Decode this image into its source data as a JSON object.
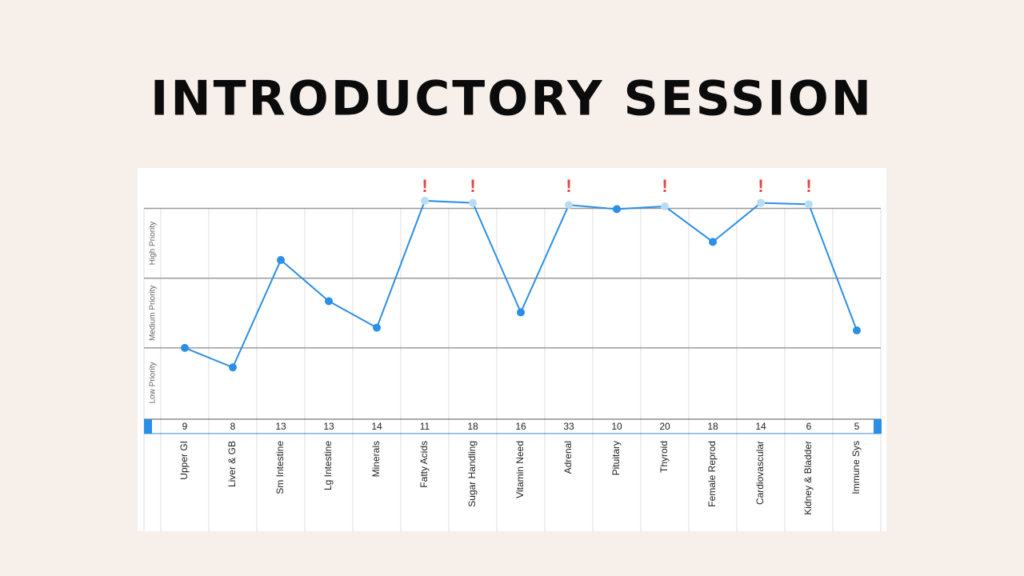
{
  "chart_data": {
    "type": "line",
    "title": "INTRODUCTORY SESSION",
    "categories": [
      "Upper GI",
      "Liver & GB",
      "Sm Intestine",
      "Lg Intestine",
      "Minerals",
      "Fatty Acids",
      "Sugar Handling",
      "Vitamin Need",
      "Adrenal",
      "Pituitary",
      "Thyroid",
      "Female Reprod",
      "Cardiovascular",
      "Kidney & Bladder",
      "Immune Sys"
    ],
    "values": [
      1.0,
      0.72,
      2.26,
      1.67,
      1.29,
      3.11,
      3.08,
      1.51,
      3.05,
      2.99,
      3.03,
      2.52,
      3.08,
      3.06,
      1.25
    ],
    "scores": [
      9,
      8,
      13,
      13,
      14,
      11,
      18,
      16,
      33,
      10,
      20,
      18,
      14,
      6,
      5
    ],
    "alerts": [
      null,
      null,
      null,
      null,
      null,
      "!",
      "!",
      null,
      "!",
      null,
      "!",
      null,
      "!",
      "!",
      null
    ],
    "bands": [
      "Low Priority",
      "Medium Priority",
      "High Priority"
    ],
    "grid_lines": [
      1,
      2,
      3
    ],
    "ylim": [
      0,
      3.58
    ],
    "color": "#2b8fe5",
    "alert_point_color": "#b9dcf5"
  }
}
